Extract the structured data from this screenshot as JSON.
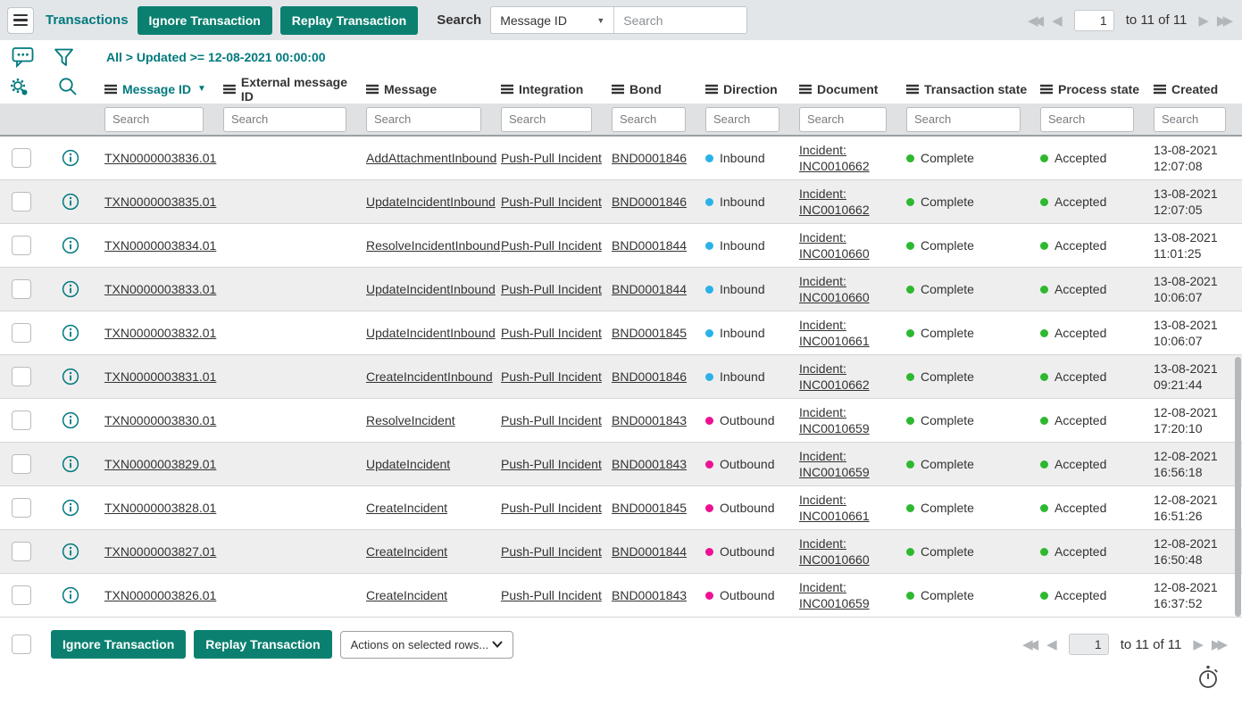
{
  "colors": {
    "teal": "#00797e",
    "button_green": "#0b8070",
    "inbound_dot": "#2ab2e8",
    "outbound_dot": "#ee1092",
    "state_green": "#2db830"
  },
  "header": {
    "title": "Transactions",
    "ignore_label": "Ignore Transaction",
    "replay_label": "Replay Transaction",
    "search_label": "Search",
    "search_field": "Message ID",
    "search_placeholder": "Search",
    "pagination": {
      "page": "1",
      "range": "to 11 of 11"
    }
  },
  "filter_bar": {
    "active_filter": "All > Updated >= 12-08-2021 00:00:00"
  },
  "table": {
    "search_placeholder": "Search",
    "columns": [
      {
        "id": "message-id",
        "label": "Message ID",
        "sorted": "desc"
      },
      {
        "id": "external-message-id",
        "label": "External message ID"
      },
      {
        "id": "message",
        "label": "Message"
      },
      {
        "id": "integration",
        "label": "Integration"
      },
      {
        "id": "bond",
        "label": "Bond"
      },
      {
        "id": "direction",
        "label": "Direction"
      },
      {
        "id": "document",
        "label": "Document"
      },
      {
        "id": "transaction-state",
        "label": "Transaction state"
      },
      {
        "id": "process-state",
        "label": "Process state"
      },
      {
        "id": "created",
        "label": "Created"
      }
    ],
    "rows": [
      {
        "message_id": "TXN0000003836.01",
        "external_message_id": "",
        "message": "AddAttachmentInbound",
        "integration": "Push-Pull Incident",
        "bond": "BND0001846",
        "direction": "Inbound",
        "document_type": "Incident:",
        "document_id": "INC0010662",
        "transaction_state": "Complete",
        "process_state": "Accepted",
        "created_date": "13-08-2021",
        "created_time": "12:07:08"
      },
      {
        "message_id": "TXN0000003835.01",
        "external_message_id": "",
        "message": "UpdateIncidentInbound",
        "integration": "Push-Pull Incident",
        "bond": "BND0001846",
        "direction": "Inbound",
        "document_type": "Incident:",
        "document_id": "INC0010662",
        "transaction_state": "Complete",
        "process_state": "Accepted",
        "created_date": "13-08-2021",
        "created_time": "12:07:05"
      },
      {
        "message_id": "TXN0000003834.01",
        "external_message_id": "",
        "message": "ResolveIncidentInbound",
        "integration": "Push-Pull Incident",
        "bond": "BND0001844",
        "direction": "Inbound",
        "document_type": "Incident:",
        "document_id": "INC0010660",
        "transaction_state": "Complete",
        "process_state": "Accepted",
        "created_date": "13-08-2021",
        "created_time": "11:01:25"
      },
      {
        "message_id": "TXN0000003833.01",
        "external_message_id": "",
        "message": "UpdateIncidentInbound",
        "integration": "Push-Pull Incident",
        "bond": "BND0001844",
        "direction": "Inbound",
        "document_type": "Incident:",
        "document_id": "INC0010660",
        "transaction_state": "Complete",
        "process_state": "Accepted",
        "created_date": "13-08-2021",
        "created_time": "10:06:07"
      },
      {
        "message_id": "TXN0000003832.01",
        "external_message_id": "",
        "message": "UpdateIncidentInbound",
        "integration": "Push-Pull Incident",
        "bond": "BND0001845",
        "direction": "Inbound",
        "document_type": "Incident:",
        "document_id": "INC0010661",
        "transaction_state": "Complete",
        "process_state": "Accepted",
        "created_date": "13-08-2021",
        "created_time": "10:06:07"
      },
      {
        "message_id": "TXN0000003831.01",
        "external_message_id": "",
        "message": "CreateIncidentInbound",
        "integration": "Push-Pull Incident",
        "bond": "BND0001846",
        "direction": "Inbound",
        "document_type": "Incident:",
        "document_id": "INC0010662",
        "transaction_state": "Complete",
        "process_state": "Accepted",
        "created_date": "13-08-2021",
        "created_time": "09:21:44"
      },
      {
        "message_id": "TXN0000003830.01",
        "external_message_id": "",
        "message": "ResolveIncident",
        "integration": "Push-Pull Incident",
        "bond": "BND0001843",
        "direction": "Outbound",
        "document_type": "Incident:",
        "document_id": "INC0010659",
        "transaction_state": "Complete",
        "process_state": "Accepted",
        "created_date": "12-08-2021",
        "created_time": "17:20:10"
      },
      {
        "message_id": "TXN0000003829.01",
        "external_message_id": "",
        "message": "UpdateIncident",
        "integration": "Push-Pull Incident",
        "bond": "BND0001843",
        "direction": "Outbound",
        "document_type": "Incident:",
        "document_id": "INC0010659",
        "transaction_state": "Complete",
        "process_state": "Accepted",
        "created_date": "12-08-2021",
        "created_time": "16:56:18"
      },
      {
        "message_id": "TXN0000003828.01",
        "external_message_id": "",
        "message": "CreateIncident",
        "integration": "Push-Pull Incident",
        "bond": "BND0001845",
        "direction": "Outbound",
        "document_type": "Incident:",
        "document_id": "INC0010661",
        "transaction_state": "Complete",
        "process_state": "Accepted",
        "created_date": "12-08-2021",
        "created_time": "16:51:26"
      },
      {
        "message_id": "TXN0000003827.01",
        "external_message_id": "",
        "message": "CreateIncident",
        "integration": "Push-Pull Incident",
        "bond": "BND0001844",
        "direction": "Outbound",
        "document_type": "Incident:",
        "document_id": "INC0010660",
        "transaction_state": "Complete",
        "process_state": "Accepted",
        "created_date": "12-08-2021",
        "created_time": "16:50:48"
      },
      {
        "message_id": "TXN0000003826.01",
        "external_message_id": "",
        "message": "CreateIncident",
        "integration": "Push-Pull Incident",
        "bond": "BND0001843",
        "direction": "Outbound",
        "document_type": "Incident:",
        "document_id": "INC0010659",
        "transaction_state": "Complete",
        "process_state": "Accepted",
        "created_date": "12-08-2021",
        "created_time": "16:37:52"
      }
    ]
  },
  "footer": {
    "ignore_label": "Ignore Transaction",
    "replay_label": "Replay Transaction",
    "actions_dropdown": "Actions on selected rows...",
    "pagination": {
      "page": "1",
      "range": "to 11 of 11"
    }
  }
}
